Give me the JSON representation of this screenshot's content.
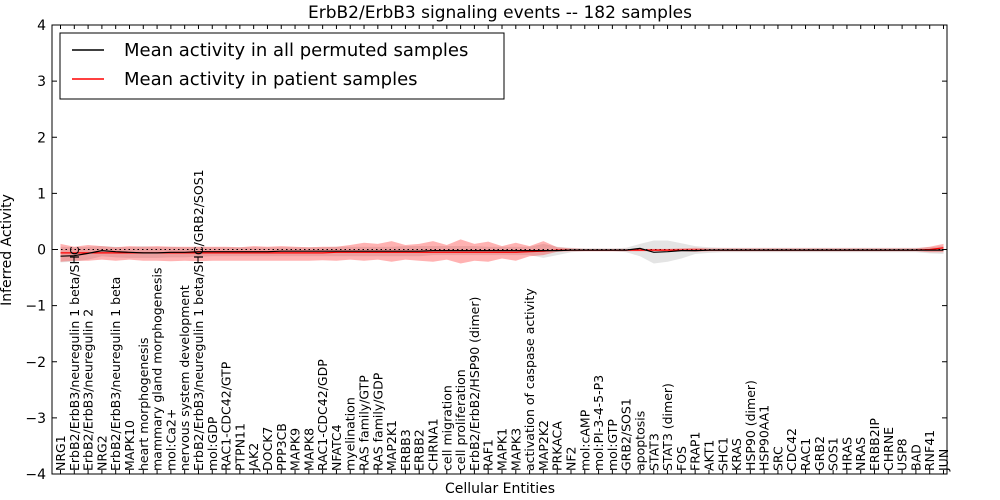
{
  "chart_data": {
    "type": "line",
    "title": "ErbB2/ErbB3 signaling events -- 182 samples",
    "xlabel": "Cellular Entities",
    "ylabel": "Inferred Activity",
    "ylim": [
      -4,
      4
    ],
    "yticks": [
      "4",
      "3",
      "2",
      "1",
      "0",
      "−1",
      "−2",
      "−3",
      "−4"
    ],
    "legend_position": "top-left",
    "categories": [
      "NRG1",
      "ErbB2/ErbB3/neuregulin 1 beta/SHC",
      "ErbB2/ErbB3/neuregulin 2",
      "NRG2",
      "ErbB2/ErbB3/neuregulin 1 beta",
      "MAPK10",
      "heart morphogenesis",
      "mammary gland morphogenesis",
      "mol:Ca2+",
      "nervous system development",
      "ErbB2/ErbB3/neuregulin 1 beta/SHC/GRB2/SOS1",
      "mol:GDP",
      "RAC1-CDC42/GTP",
      "PTPN11",
      "JAK2",
      "DOCK7",
      "PPP3CB",
      "MAPK9",
      "MAPK8",
      "RAC1-CDC42/GDP",
      "NFATC4",
      "myelination",
      "RAS family/GTP",
      "RAS family/GDP",
      "MAP2K1",
      "ERBB3",
      "ERBB2",
      "CHRNA1",
      "cell migration",
      "cell proliferation",
      "ErbB2/ErbB2/HSP90 (dimer)",
      "RAF1",
      "MAPK1",
      "MAPK3",
      "activation of caspase activity",
      "MAP2K2",
      "PRKACA",
      "NF2",
      "mol:cAMP",
      "mol:PI-3-4-5-P3",
      "mol:GTP",
      "GRB2/SOS1",
      "apoptosis",
      "STAT3",
      "STAT3 (dimer)",
      "FOS",
      "FRAP1",
      "AKT1",
      "SHC1",
      "KRAS",
      "HSP90 (dimer)",
      "HSP90AA1",
      "SRC",
      "CDC42",
      "RAC1",
      "GRB2",
      "SOS1",
      "HRAS",
      "NRAS",
      "ERBB2IP",
      "CHRNE",
      "USP8",
      "BAD",
      "RNF41",
      "JUN"
    ],
    "series": [
      {
        "name": "Mean activity in all permuted samples",
        "color": "#000000",
        "values": [
          -0.12,
          -0.11,
          -0.07,
          -0.02,
          -0.04,
          -0.05,
          -0.06,
          -0.06,
          -0.05,
          -0.05,
          -0.04,
          -0.04,
          -0.04,
          -0.04,
          -0.04,
          -0.04,
          -0.03,
          -0.03,
          -0.03,
          -0.03,
          -0.03,
          -0.03,
          -0.03,
          -0.03,
          -0.03,
          -0.03,
          -0.03,
          -0.02,
          -0.02,
          -0.02,
          -0.02,
          -0.02,
          -0.02,
          -0.02,
          -0.02,
          -0.02,
          -0.02,
          -0.01,
          -0.01,
          -0.01,
          -0.01,
          -0.01,
          0.02,
          -0.05,
          -0.04,
          -0.02,
          -0.02,
          -0.01,
          -0.01,
          -0.01,
          -0.01,
          -0.01,
          -0.01,
          -0.01,
          -0.01,
          -0.01,
          -0.01,
          -0.01,
          -0.01,
          -0.01,
          -0.01,
          -0.01,
          -0.01,
          -0.01,
          -0.01
        ],
        "band_upper": [
          0.05,
          0.04,
          0.05,
          0.06,
          0.05,
          0.04,
          0.06,
          0.04,
          0.05,
          0.04,
          0.05,
          0.04,
          0.04,
          0.04,
          0.04,
          0.04,
          0.04,
          0.04,
          0.04,
          0.04,
          0.05,
          0.05,
          0.05,
          0.05,
          0.05,
          0.06,
          0.06,
          0.06,
          0.06,
          0.06,
          0.06,
          0.05,
          0.05,
          0.05,
          0.05,
          0.1,
          0.05,
          0.03,
          0.02,
          0.02,
          0.02,
          0.03,
          0.1,
          0.16,
          0.16,
          0.11,
          0.06,
          0.04,
          0.03,
          0.03,
          0.03,
          0.03,
          0.03,
          0.03,
          0.03,
          0.03,
          0.03,
          0.03,
          0.03,
          0.03,
          0.03,
          0.03,
          0.03,
          0.04,
          0.06
        ],
        "band_lower": [
          -0.23,
          -0.22,
          -0.18,
          -0.12,
          -0.14,
          -0.15,
          -0.15,
          -0.15,
          -0.14,
          -0.14,
          -0.13,
          -0.12,
          -0.12,
          -0.12,
          -0.12,
          -0.12,
          -0.12,
          -0.12,
          -0.12,
          -0.12,
          -0.12,
          -0.12,
          -0.12,
          -0.12,
          -0.12,
          -0.12,
          -0.12,
          -0.1,
          -0.1,
          -0.1,
          -0.1,
          -0.1,
          -0.1,
          -0.1,
          -0.1,
          -0.15,
          -0.1,
          -0.05,
          -0.03,
          -0.03,
          -0.03,
          -0.05,
          -0.12,
          -0.25,
          -0.22,
          -0.16,
          -0.08,
          -0.06,
          -0.05,
          -0.05,
          -0.05,
          -0.05,
          -0.05,
          -0.05,
          -0.05,
          -0.05,
          -0.05,
          -0.05,
          -0.05,
          -0.05,
          -0.05,
          -0.05,
          -0.05,
          -0.07,
          -0.08
        ]
      },
      {
        "name": "Mean activity in patient samples",
        "color": "#ff0000",
        "values": [
          -0.06,
          -0.06,
          -0.06,
          -0.06,
          -0.06,
          -0.06,
          -0.06,
          -0.06,
          -0.06,
          -0.06,
          -0.06,
          -0.06,
          -0.06,
          -0.06,
          -0.06,
          -0.06,
          -0.06,
          -0.06,
          -0.06,
          -0.06,
          -0.05,
          -0.05,
          -0.05,
          -0.05,
          -0.05,
          -0.05,
          -0.05,
          -0.05,
          -0.05,
          -0.05,
          -0.05,
          -0.05,
          -0.05,
          -0.05,
          -0.04,
          -0.03,
          -0.01,
          -0.01,
          -0.01,
          -0.01,
          -0.01,
          -0.01,
          -0.01,
          -0.01,
          -0.01,
          -0.01,
          -0.01,
          -0.01,
          -0.01,
          -0.01,
          -0.01,
          -0.01,
          -0.01,
          -0.01,
          -0.01,
          -0.01,
          -0.01,
          -0.01,
          -0.01,
          -0.01,
          -0.01,
          -0.01,
          -0.01,
          0.0,
          0.03
        ],
        "band_upper": [
          0.1,
          0.05,
          0.08,
          0.06,
          0.04,
          0.06,
          0.05,
          0.06,
          0.05,
          0.05,
          0.05,
          0.05,
          0.05,
          0.04,
          0.06,
          0.05,
          0.06,
          0.05,
          0.04,
          0.05,
          0.05,
          0.08,
          0.12,
          0.1,
          0.15,
          0.08,
          0.1,
          0.15,
          0.08,
          0.18,
          0.1,
          0.14,
          0.06,
          0.12,
          0.06,
          0.15,
          0.04,
          0.02,
          0.01,
          0.01,
          0.01,
          0.01,
          0.01,
          0.01,
          0.01,
          0.02,
          0.03,
          0.02,
          0.02,
          0.02,
          0.02,
          0.02,
          0.02,
          0.02,
          0.02,
          0.02,
          0.02,
          0.02,
          0.02,
          0.02,
          0.02,
          0.02,
          0.02,
          0.05,
          0.1
        ],
        "band_lower": [
          -0.22,
          -0.2,
          -0.2,
          -0.18,
          -0.2,
          -0.18,
          -0.2,
          -0.2,
          -0.21,
          -0.2,
          -0.21,
          -0.2,
          -0.2,
          -0.2,
          -0.2,
          -0.2,
          -0.2,
          -0.2,
          -0.2,
          -0.19,
          -0.2,
          -0.18,
          -0.2,
          -0.18,
          -0.22,
          -0.18,
          -0.2,
          -0.22,
          -0.18,
          -0.25,
          -0.2,
          -0.22,
          -0.16,
          -0.2,
          -0.12,
          -0.1,
          -0.04,
          -0.03,
          -0.03,
          -0.03,
          -0.03,
          -0.03,
          -0.03,
          -0.03,
          -0.03,
          -0.03,
          -0.04,
          -0.03,
          -0.03,
          -0.03,
          -0.03,
          -0.03,
          -0.03,
          -0.03,
          -0.03,
          -0.03,
          -0.03,
          -0.03,
          -0.03,
          -0.03,
          -0.03,
          -0.03,
          -0.03,
          -0.05,
          -0.05
        ]
      }
    ],
    "reference_line": 0
  }
}
